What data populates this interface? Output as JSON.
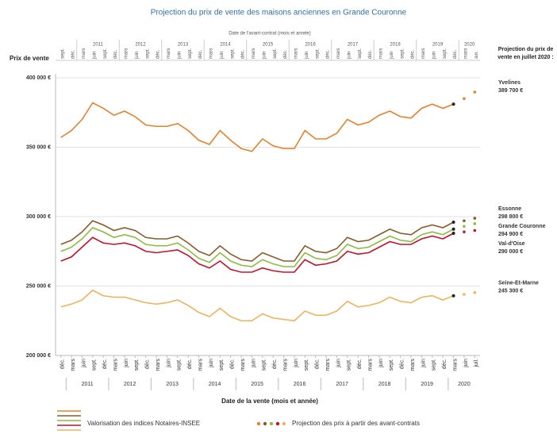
{
  "chart_data": {
    "type": "line",
    "title": "Projection du prix de vente des maisons anciennes en Grande Couronne",
    "top_axis_label": "Date de l'avant-contrat (mois et année)",
    "y_axis_label": "Prix de vente",
    "x_axis_label": "Date de la vente (mois et année)",
    "projection_header": "Projection du prix de vente en juillet 2020 :",
    "legend_lines": "Valorisation des indices Notaires-INSEE",
    "legend_dots": "Projection des prix à partir des avant-contrats",
    "categories": [
      "déc.",
      "mars",
      "juin",
      "sept.",
      "déc.",
      "mars",
      "juin",
      "sept.",
      "déc.",
      "mars",
      "juin",
      "sept.",
      "déc.",
      "mars",
      "juin",
      "sept.",
      "déc.",
      "mars",
      "juin",
      "sept.",
      "déc.",
      "mars",
      "juin",
      "sept.",
      "déc.",
      "mars",
      "juin",
      "sept.",
      "déc.",
      "mars",
      "juin",
      "sept.",
      "déc.",
      "mars",
      "juin",
      "sept.",
      "déc.",
      "mars",
      "juin",
      "juil."
    ],
    "years": [
      "2011",
      "2012",
      "2013",
      "2014",
      "2015",
      "2016",
      "2017",
      "2018",
      "2019",
      "2020"
    ],
    "top_categories": [
      "sept.",
      "déc.",
      "mars",
      "juin",
      "sept.",
      "déc.",
      "mars",
      "juin",
      "sept.",
      "déc.",
      "mars",
      "juin",
      "sept.",
      "déc.",
      "mars",
      "juin",
      "sept.",
      "déc.",
      "mars",
      "juin",
      "sept.",
      "déc.",
      "mars",
      "juin",
      "sept.",
      "déc.",
      "mars",
      "juin",
      "sept.",
      "déc.",
      "mars",
      "juin",
      "sept.",
      "déc.",
      "mars",
      "juin",
      "sept.",
      "déc.",
      "mars",
      "avr."
    ],
    "top_years": [
      "2011",
      "2012",
      "2013",
      "2014",
      "2015",
      "2016",
      "2017",
      "2018",
      "2019",
      "2020"
    ],
    "ylim": [
      200000,
      400000
    ],
    "yticks": [
      {
        "value": 200000,
        "label": "200 000 €"
      },
      {
        "value": 250000,
        "label": "250 000 €"
      },
      {
        "value": 300000,
        "label": "300 000 €"
      },
      {
        "value": 350000,
        "label": "350 000 €"
      },
      {
        "value": 400000,
        "label": "400 000 €"
      }
    ],
    "grid": true,
    "series": [
      {
        "name": "Yvelines",
        "color": "#e8802a",
        "end_label": "389 700 €",
        "end_value": 389700,
        "values": [
          357000,
          362000,
          370000,
          382000,
          378000,
          373000,
          376000,
          372000,
          366000,
          365000,
          365000,
          367000,
          362000,
          355000,
          352000,
          362000,
          355000,
          349000,
          347000,
          356000,
          351000,
          349000,
          349000,
          362000,
          356000,
          356000,
          360000,
          370000,
          366000,
          368000,
          373000,
          376000,
          372000,
          371000,
          378000,
          381000,
          378000,
          381000,
          null,
          null
        ],
        "projection": [
          null,
          null,
          null,
          null,
          null,
          null,
          null,
          null,
          null,
          null,
          null,
          null,
          null,
          null,
          null,
          null,
          null,
          null,
          null,
          null,
          null,
          null,
          null,
          null,
          null,
          null,
          null,
          null,
          null,
          null,
          null,
          null,
          null,
          null,
          null,
          null,
          null,
          null,
          385000,
          389700
        ]
      },
      {
        "name": "Essonne",
        "color": "#8b5a2b",
        "end_label": "298 800 €",
        "end_value": 298800,
        "values": [
          280000,
          283000,
          289000,
          297000,
          294000,
          290000,
          292000,
          290000,
          285000,
          284000,
          284000,
          286000,
          281000,
          275000,
          272000,
          279000,
          273000,
          269000,
          268000,
          274000,
          271000,
          268000,
          268000,
          279000,
          275000,
          274000,
          277000,
          285000,
          282000,
          283000,
          287000,
          291000,
          288000,
          287000,
          292000,
          294000,
          292000,
          296000,
          null,
          null
        ],
        "projection": [
          null,
          null,
          null,
          null,
          null,
          null,
          null,
          null,
          null,
          null,
          null,
          null,
          null,
          null,
          null,
          null,
          null,
          null,
          null,
          null,
          null,
          null,
          null,
          null,
          null,
          null,
          null,
          null,
          null,
          null,
          null,
          null,
          null,
          null,
          null,
          null,
          null,
          null,
          297000,
          298800
        ]
      },
      {
        "name": "Grande Couronne",
        "color": "#8cbd3f",
        "end_label": "294 900 €",
        "end_value": 294900,
        "values": [
          275000,
          278000,
          284000,
          292000,
          289000,
          285000,
          287000,
          285000,
          280000,
          279000,
          279000,
          281000,
          276000,
          270000,
          267000,
          274000,
          268000,
          265000,
          264000,
          269000,
          266000,
          264000,
          264000,
          274000,
          270000,
          269000,
          272000,
          280000,
          277000,
          278000,
          282000,
          286000,
          283000,
          282000,
          287000,
          289000,
          287000,
          291000,
          null,
          null
        ],
        "projection": [
          null,
          null,
          null,
          null,
          null,
          null,
          null,
          null,
          null,
          null,
          null,
          null,
          null,
          null,
          null,
          null,
          null,
          null,
          null,
          null,
          null,
          null,
          null,
          null,
          null,
          null,
          null,
          null,
          null,
          null,
          null,
          null,
          null,
          null,
          null,
          null,
          null,
          null,
          293000,
          294900
        ]
      },
      {
        "name": "Val-d'Oise",
        "color": "#c8102e",
        "end_label": "290 000 €",
        "end_value": 290000,
        "values": [
          268000,
          271000,
          278000,
          285000,
          281000,
          280000,
          281000,
          279000,
          275000,
          274000,
          275000,
          276000,
          272000,
          266000,
          263000,
          268000,
          262000,
          260000,
          260000,
          263000,
          261000,
          260000,
          260000,
          269000,
          265000,
          266000,
          268000,
          275000,
          273000,
          274000,
          278000,
          282000,
          280000,
          280000,
          284000,
          286000,
          284000,
          288000,
          null,
          null
        ],
        "projection": [
          null,
          null,
          null,
          null,
          null,
          null,
          null,
          null,
          null,
          null,
          null,
          null,
          null,
          null,
          null,
          null,
          null,
          null,
          null,
          null,
          null,
          null,
          null,
          null,
          null,
          null,
          null,
          null,
          null,
          null,
          null,
          null,
          null,
          null,
          null,
          null,
          null,
          null,
          289000,
          290000
        ]
      },
      {
        "name": "Seine-Et-Marne",
        "color": "#f2b25c",
        "end_label": "245 300 €",
        "end_value": 245300,
        "values": [
          235000,
          237000,
          240000,
          247000,
          243000,
          242000,
          242000,
          240000,
          238000,
          237000,
          238000,
          240000,
          236000,
          231000,
          228000,
          234000,
          228000,
          225000,
          225000,
          230000,
          227000,
          226000,
          225000,
          232000,
          229000,
          229000,
          232000,
          239000,
          235000,
          236000,
          238000,
          242000,
          239000,
          238000,
          242000,
          243000,
          240000,
          243000,
          null,
          null
        ],
        "projection": [
          null,
          null,
          null,
          null,
          null,
          null,
          null,
          null,
          null,
          null,
          null,
          null,
          null,
          null,
          null,
          null,
          null,
          null,
          null,
          null,
          null,
          null,
          null,
          null,
          null,
          null,
          null,
          null,
          null,
          null,
          null,
          null,
          null,
          null,
          null,
          null,
          null,
          null,
          244000,
          245300
        ]
      }
    ]
  }
}
